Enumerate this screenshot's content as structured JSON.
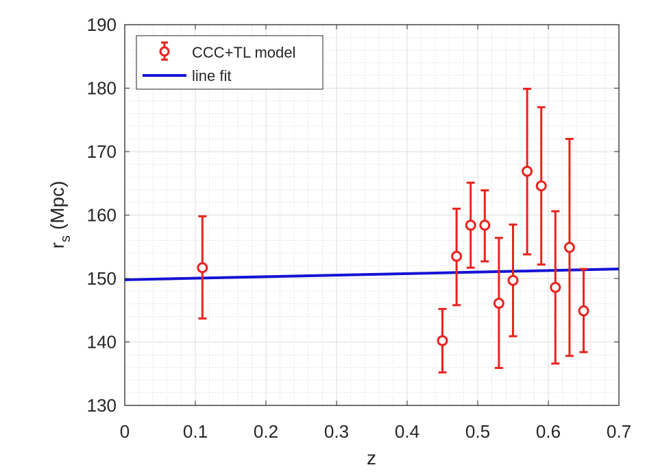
{
  "chart_data": {
    "type": "scatter",
    "xlabel": "z",
    "ylabel": "r",
    "ylabel_subscript": "s",
    "ylabel_unit": "(Mpc)",
    "xlim": [
      0,
      0.7
    ],
    "ylim": [
      130,
      190
    ],
    "xticks": [
      0,
      0.1,
      0.2,
      0.3,
      0.4,
      0.5,
      0.6,
      0.7
    ],
    "xtick_labels": [
      "0",
      "0.1",
      "0.2",
      "0.3",
      "0.4",
      "0.5",
      "0.6",
      "0.7"
    ],
    "yticks": [
      130,
      140,
      150,
      160,
      170,
      180,
      190
    ],
    "ytick_labels": [
      "130",
      "140",
      "150",
      "160",
      "170",
      "180",
      "190"
    ],
    "grid": true,
    "minor_grid": true,
    "legend_position": "top-left",
    "series": [
      {
        "name": "CCC+TL model",
        "kind": "errorbar",
        "color": "#e8231f",
        "points": [
          {
            "x": 0.11,
            "y": 151.7,
            "lo": 143.7,
            "hi": 159.8
          },
          {
            "x": 0.45,
            "y": 140.2,
            "lo": 135.2,
            "hi": 145.2
          },
          {
            "x": 0.47,
            "y": 153.5,
            "lo": 145.8,
            "hi": 161.0
          },
          {
            "x": 0.49,
            "y": 158.4,
            "lo": 151.7,
            "hi": 165.1
          },
          {
            "x": 0.51,
            "y": 158.4,
            "lo": 152.7,
            "hi": 163.9
          },
          {
            "x": 0.53,
            "y": 146.1,
            "lo": 135.9,
            "hi": 156.4
          },
          {
            "x": 0.55,
            "y": 149.7,
            "lo": 140.9,
            "hi": 158.5
          },
          {
            "x": 0.57,
            "y": 166.9,
            "lo": 153.8,
            "hi": 179.9
          },
          {
            "x": 0.59,
            "y": 164.6,
            "lo": 152.2,
            "hi": 177.0
          },
          {
            "x": 0.61,
            "y": 148.6,
            "lo": 136.6,
            "hi": 160.6
          },
          {
            "x": 0.63,
            "y": 154.9,
            "lo": 137.8,
            "hi": 172.0
          },
          {
            "x": 0.65,
            "y": 144.9,
            "lo": 138.4,
            "hi": 151.5
          }
        ]
      },
      {
        "name": "line fit",
        "kind": "line",
        "color": "#1414d4",
        "x": [
          0,
          0.7
        ],
        "y": [
          149.8,
          151.5
        ]
      }
    ]
  }
}
